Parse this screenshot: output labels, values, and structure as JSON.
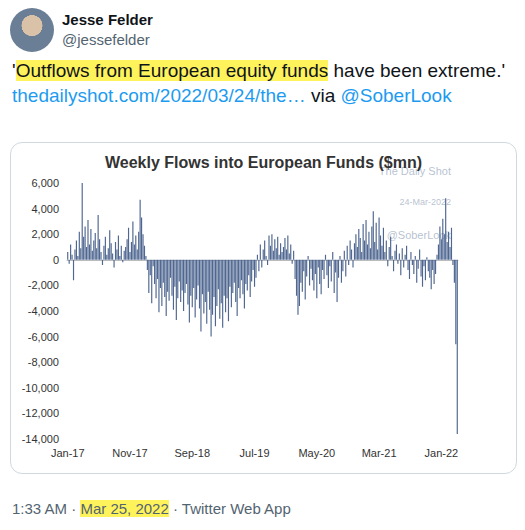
{
  "tweet": {
    "author": "Jesse Felder",
    "handle": "@jessefelder",
    "text": [
      {
        "text": "'",
        "style": "plain"
      },
      {
        "text": "Outflows from European equity funds",
        "style": "highlight"
      },
      {
        "text": " have been extreme.' ",
        "style": "plain"
      },
      {
        "text": "thedailyshot.com/2022/03/24/the…",
        "style": "link"
      },
      {
        "text": " via ",
        "style": "plain"
      },
      {
        "text": "@SoberLook",
        "style": "link"
      }
    ],
    "footer": [
      {
        "text": "1:33 AM",
        "style": "plain"
      },
      {
        "text": " · ",
        "style": "plain"
      },
      {
        "text": "Mar 25, 2022",
        "style": "highlight"
      },
      {
        "text": " · ",
        "style": "plain"
      },
      {
        "text": "Twitter Web App",
        "style": "plain"
      }
    ]
  },
  "chart_data": {
    "type": "bar",
    "title": "Weekly Flows into European Funds ($mn)",
    "watermark": [
      "The Daily Shot",
      "24-Mar-2022",
      "@SoberLook"
    ],
    "color": "#4e6690",
    "grid": false,
    "ylim": [
      -14000,
      6000
    ],
    "yticks": [
      {
        "value": -14000,
        "label": "-14,000"
      },
      {
        "value": -12000,
        "label": "-12,000"
      },
      {
        "value": -10000,
        "label": "-10,000"
      },
      {
        "value": -8000,
        "label": "-8,000"
      },
      {
        "value": -6000,
        "label": "-6,000"
      },
      {
        "value": -4000,
        "label": "-4,000"
      },
      {
        "value": -2000,
        "label": "-2,000"
      },
      0,
      {
        "value": 2000,
        "label": "2,000"
      },
      {
        "value": 4000,
        "label": "4,000"
      },
      {
        "value": 6000,
        "label": "6,000"
      }
    ],
    "categories": [
      "Jan-17",
      null,
      null,
      null,
      null,
      null,
      null,
      null,
      null,
      null,
      null,
      null,
      null,
      null,
      null,
      null,
      null,
      null,
      null,
      null,
      null,
      null,
      null,
      null,
      null,
      null,
      null,
      null,
      null,
      null,
      null,
      null,
      null,
      null,
      null,
      null,
      null,
      null,
      null,
      null,
      null,
      null,
      null,
      "Nov-17",
      null,
      null,
      null,
      null,
      null,
      null,
      null,
      null,
      null,
      null,
      null,
      null,
      null,
      null,
      null,
      null,
      null,
      null,
      null,
      null,
      null,
      null,
      null,
      null,
      null,
      null,
      null,
      null,
      null,
      null,
      null,
      null,
      null,
      null,
      null,
      null,
      null,
      null,
      null,
      null,
      null,
      null,
      "Sep-18",
      null,
      null,
      null,
      null,
      null,
      null,
      null,
      null,
      null,
      null,
      null,
      null,
      null,
      null,
      null,
      null,
      null,
      null,
      null,
      null,
      null,
      null,
      null,
      null,
      null,
      null,
      null,
      null,
      null,
      null,
      null,
      null,
      null,
      null,
      null,
      null,
      null,
      null,
      null,
      null,
      null,
      null,
      "Jul-19",
      null,
      null,
      null,
      null,
      null,
      null,
      null,
      null,
      null,
      null,
      null,
      null,
      null,
      null,
      null,
      null,
      null,
      null,
      null,
      null,
      null,
      null,
      null,
      null,
      null,
      null,
      null,
      null,
      null,
      null,
      null,
      null,
      null,
      null,
      null,
      null,
      null,
      null,
      null,
      null,
      null,
      null,
      "May-20",
      null,
      null,
      null,
      null,
      null,
      null,
      null,
      null,
      null,
      null,
      null,
      null,
      null,
      null,
      null,
      null,
      null,
      null,
      null,
      null,
      null,
      null,
      null,
      null,
      null,
      null,
      null,
      null,
      null,
      null,
      null,
      null,
      null,
      null,
      null,
      null,
      null,
      null,
      null,
      null,
      null,
      null,
      "Mar-21",
      null,
      null,
      null,
      null,
      null,
      null,
      null,
      null,
      null,
      null,
      null,
      null,
      null,
      null,
      null,
      null,
      null,
      null,
      null,
      null,
      null,
      null,
      null,
      null,
      null,
      null,
      null,
      null,
      null,
      null,
      null,
      null,
      null,
      null,
      null,
      null,
      null,
      null,
      null,
      null,
      null,
      null,
      "Jan-22",
      null,
      null,
      null,
      null,
      null,
      null,
      null,
      null,
      null,
      null,
      null
    ],
    "values": [
      600,
      -300,
      1200,
      400,
      -1600,
      800,
      1500,
      300,
      2200,
      900,
      6000,
      1800,
      2600,
      1000,
      3100,
      1200,
      2400,
      700,
      1500,
      2100,
      900,
      3500,
      1600,
      600,
      -400,
      1100,
      1800,
      400,
      900,
      2300,
      1300,
      500,
      -600,
      1400,
      800,
      1900,
      300,
      1100,
      -200,
      700,
      1000,
      1600,
      2500,
      600,
      1400,
      3000,
      1200,
      1900,
      800,
      2200,
      4700,
      3300,
      2000,
      1100,
      300,
      -800,
      -2600,
      -1200,
      -3400,
      -500,
      -1900,
      -3000,
      -1500,
      -4100,
      -2200,
      -3600,
      -1800,
      -2900,
      -4400,
      -2500,
      -3200,
      -1400,
      -2800,
      -3900,
      -2100,
      -4700,
      -3000,
      -1700,
      -3300,
      -2400,
      -4000,
      -2600,
      -1900,
      -3500,
      -4900,
      -2800,
      -3700,
      -2200,
      -4500,
      -3100,
      -2000,
      -3800,
      -5600,
      -2700,
      -4200,
      -3300,
      -5000,
      -2500,
      -3900,
      -6000,
      -4300,
      -2900,
      -5200,
      -3600,
      -2300,
      -4600,
      -3400,
      -5300,
      -2800,
      -4100,
      -3000,
      -4800,
      -2100,
      -3700,
      -2600,
      -1800,
      -3300,
      -4400,
      -2200,
      -3000,
      -1600,
      -2700,
      -3800,
      -1900,
      -2400,
      -1200,
      -2900,
      -1700,
      -800,
      -2100,
      -1400,
      400,
      -900,
      1200,
      -600,
      800,
      1500,
      300,
      -400,
      1900,
      1100,
      2000,
      700,
      1600,
      900,
      1800,
      400,
      1300,
      600,
      1000,
      1700,
      800,
      1900,
      500,
      1200,
      -300,
      700,
      -1500,
      -2800,
      -4300,
      -3600,
      -1800,
      -2500,
      -900,
      -3100,
      -1300,
      300,
      -2000,
      -700,
      -1600,
      -2400,
      -1100,
      -3000,
      -600,
      -1900,
      -2700,
      -800,
      -1500,
      400,
      -1200,
      -2200,
      -500,
      -1700,
      600,
      -2600,
      -1000,
      -3300,
      -1400,
      300,
      -1800,
      -900,
      700,
      -1300,
      1100,
      -400,
      1500,
      800,
      -600,
      1300,
      2000,
      1000,
      2400,
      1700,
      600,
      2800,
      1500,
      3100,
      1200,
      2200,
      900,
      2600,
      3800,
      1400,
      2900,
      800,
      3300,
      1900,
      1100,
      2500,
      600,
      1500,
      -500,
      1000,
      1800,
      300,
      -900,
      700,
      1200,
      -300,
      500,
      -1200,
      900,
      -600,
      400,
      1100,
      -800,
      -1500,
      600,
      -400,
      -1100,
      300,
      -1800,
      -700,
      800,
      -1300,
      -2100,
      -500,
      -1600,
      200,
      -900,
      -1400,
      -2300,
      -800,
      -1900,
      -1100,
      400,
      1200,
      2600,
      1600,
      3200,
      2000,
      4800,
      1400,
      2200,
      1000,
      2500,
      -400,
      -1800,
      -6600,
      -13600
    ]
  }
}
